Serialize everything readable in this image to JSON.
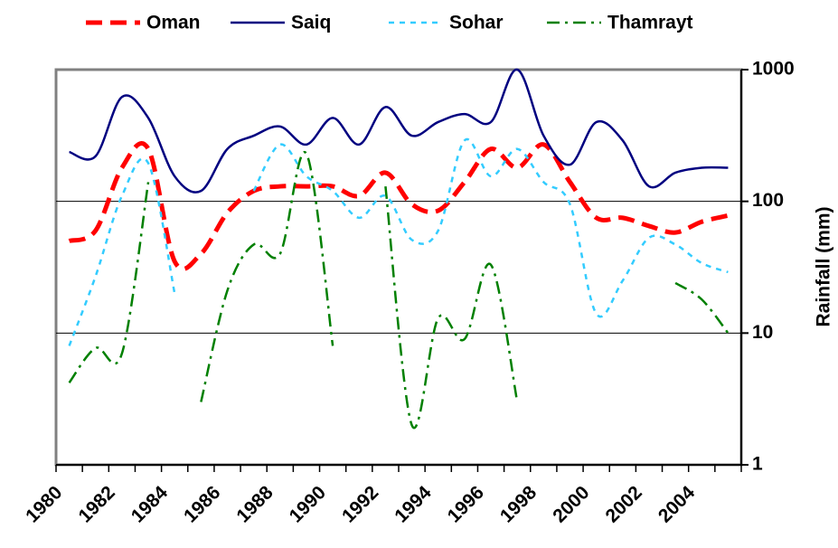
{
  "chart_data": {
    "type": "line",
    "y_label": "Rainfall (mm)",
    "y_axis_side": "right",
    "y_scale": "log",
    "ylim": [
      1,
      1000
    ],
    "yticks": [
      1,
      10,
      100,
      1000
    ],
    "grid": true,
    "legend": "top",
    "categories": [
      "1980",
      null,
      "1982",
      null,
      "1984",
      null,
      "1986",
      null,
      "1988",
      null,
      "1990",
      null,
      "1992",
      null,
      "1994",
      null,
      "1996",
      null,
      "1998",
      null,
      "2000",
      null,
      "2002",
      null,
      "2004",
      null
    ],
    "series": [
      {
        "name": "Oman",
        "color": "#ff0000",
        "line_style": "dashed",
        "width": 5,
        "values": [
          50,
          60,
          180,
          250,
          35,
          40,
          82,
          120,
          130,
          130,
          130,
          110,
          165,
          95,
          85,
          140,
          250,
          180,
          270,
          140,
          75,
          75,
          65,
          58,
          70,
          78
        ]
      },
      {
        "name": "Saiq",
        "color": "#000080",
        "line_style": "solid",
        "width": 2.5,
        "values": [
          237,
          220,
          620,
          430,
          155,
          120,
          250,
          315,
          370,
          270,
          430,
          270,
          520,
          315,
          400,
          460,
          400,
          1000,
          315,
          190,
          400,
          290,
          130,
          165,
          180,
          180
        ]
      },
      {
        "name": "Sohar",
        "color": "#33ccff",
        "line_style": "dotted",
        "width": 2.5,
        "values": [
          8,
          27,
          110,
          195,
          20,
          null,
          null,
          120,
          270,
          155,
          120,
          75,
          110,
          51,
          60,
          290,
          155,
          250,
          140,
          95,
          14,
          25,
          53,
          47,
          34,
          29
        ]
      },
      {
        "name": "Thamrayt",
        "color": "#008000",
        "line_style": "dashdot",
        "width": 2.5,
        "values": [
          4.2,
          7.7,
          7,
          140,
          null,
          3,
          21,
          47,
          40,
          230,
          8,
          null,
          130,
          2,
          13,
          9,
          33,
          3,
          null,
          null,
          null,
          null,
          null,
          24,
          18,
          10
        ]
      }
    ]
  }
}
